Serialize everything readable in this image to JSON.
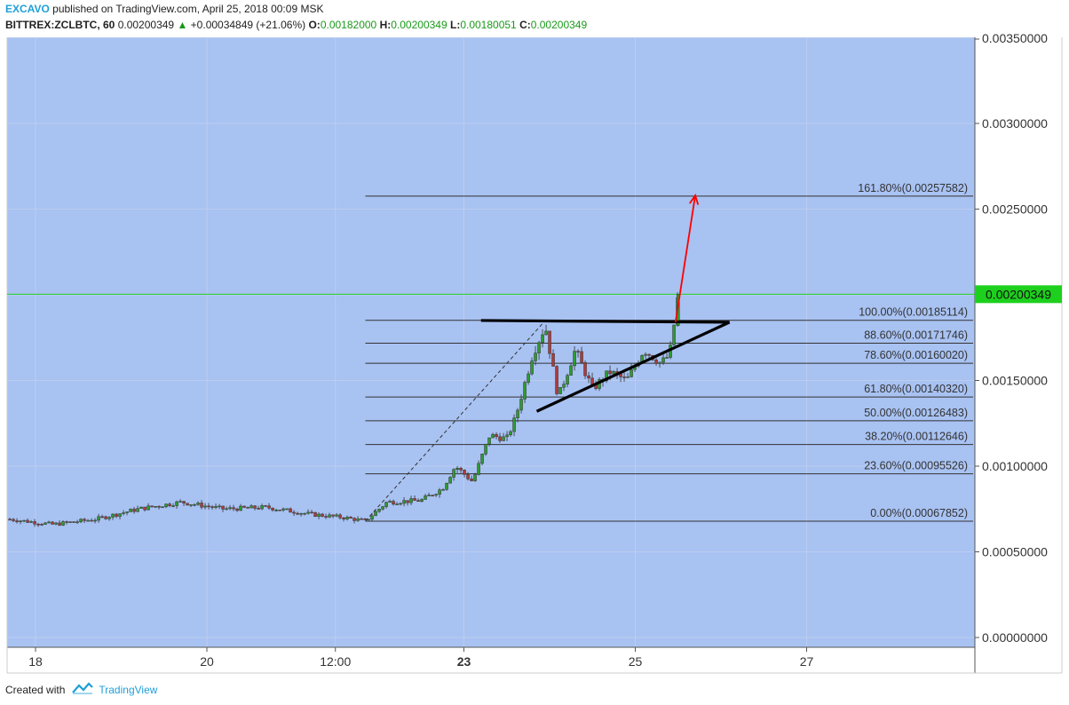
{
  "header": {
    "author": "EXCAVO",
    "published": "published on TradingView.com, April 25, 2018 00:09 MSK",
    "symbol": "BITTREX:ZCLBTC, 60",
    "last": "0.00200349",
    "change": "+0.00034849 (+21.06%)",
    "o_label": "O:",
    "o_value": "0.00182000",
    "h_label": "H:",
    "h_value": "0.00200349",
    "l_label": "L:",
    "l_value": "0.00180051",
    "c_label": "C:",
    "c_value": "0.00200349"
  },
  "footer": {
    "created_with": "Created with",
    "brand": "TradingView"
  },
  "colors": {
    "background": "#a8c2f2",
    "up": "#2e9b2e",
    "down": "#b03a3a",
    "fib_line": "#333333",
    "trendline": "#000000",
    "arrow": "#ff0000",
    "last_price_tag": "#1ed01e",
    "grid": "#bccdee"
  },
  "chart_data": {
    "type": "candlestick",
    "symbol": "BITTREX:ZCLBTC",
    "interval": "60",
    "y_axis": {
      "range": [
        0,
        0.0035
      ],
      "ticks": [
        "0.00000000",
        "0.00050000",
        "0.00100000",
        "0.00150000",
        "0.00200000",
        "0.00250000",
        "0.00300000",
        "0.00350000"
      ]
    },
    "x_axis": {
      "ticks": [
        {
          "label": "18",
          "day": 18.0,
          "bold": false
        },
        {
          "label": "20",
          "day": 20.0,
          "bold": false
        },
        {
          "label": "12:00",
          "day": 21.5,
          "bold": false
        },
        {
          "label": "23",
          "day": 23.0,
          "bold": true
        },
        {
          "label": "25",
          "day": 25.0,
          "bold": false
        },
        {
          "label": "27",
          "day": 27.0,
          "bold": false
        }
      ]
    },
    "last_price": "0.00200349",
    "price_path": [
      [
        17.7,
        0.00069
      ],
      [
        18.2,
        0.00066
      ],
      [
        18.7,
        0.00069
      ],
      [
        19.2,
        0.00075
      ],
      [
        19.7,
        0.00079
      ],
      [
        20.2,
        0.00075
      ],
      [
        20.7,
        0.00076
      ],
      [
        21.2,
        0.00072
      ],
      [
        21.6,
        0.0007
      ],
      [
        21.85,
        0.00068
      ],
      [
        22.1,
        0.00079
      ],
      [
        22.5,
        0.0008
      ],
      [
        22.75,
        0.00087
      ],
      [
        22.9,
        0.001
      ],
      [
        23.1,
        0.00091
      ],
      [
        23.3,
        0.00118
      ],
      [
        23.5,
        0.00116
      ],
      [
        23.6,
        0.00128
      ],
      [
        23.8,
        0.00165
      ],
      [
        23.95,
        0.00182
      ],
      [
        24.1,
        0.0014
      ],
      [
        24.3,
        0.00168
      ],
      [
        24.5,
        0.00145
      ],
      [
        24.7,
        0.00155
      ],
      [
        24.9,
        0.0015
      ],
      [
        25.1,
        0.00168
      ],
      [
        25.3,
        0.0016
      ],
      [
        25.4,
        0.00165
      ],
      [
        25.45,
        0.00182
      ],
      [
        25.5,
        0.002
      ]
    ],
    "fibonacci": [
      {
        "label": "0.00%(0.00067852)",
        "price": 0.00067852
      },
      {
        "label": "23.60%(0.00095526)",
        "price": 0.00095526
      },
      {
        "label": "38.20%(0.00112646)",
        "price": 0.00112646
      },
      {
        "label": "50.00%(0.00126483)",
        "price": 0.00126483
      },
      {
        "label": "61.80%(0.00140320)",
        "price": 0.0014032
      },
      {
        "label": "78.60%(0.00160020)",
        "price": 0.0016002
      },
      {
        "label": "88.60%(0.00171746)",
        "price": 0.00171746
      },
      {
        "label": "100.00%(0.00185114)",
        "price": 0.00185114
      },
      {
        "label": "161.80%(0.00257582)",
        "price": 0.00257582
      }
    ],
    "fib_x_range": [
      21.85,
      28.0
    ],
    "resistance_line": {
      "x": [
        23.2,
        26.1
      ],
      "y": [
        0.00185,
        0.00184
      ]
    },
    "support_line": {
      "x": [
        23.85,
        26.1
      ],
      "y": [
        0.00132,
        0.00184
      ]
    },
    "target_arrow": {
      "from": [
        25.47,
        0.00184
      ],
      "to": [
        25.7,
        0.00258
      ]
    },
    "dashed_guide": {
      "from": [
        21.85,
        0.00068
      ],
      "to": [
        23.95,
        0.00185
      ]
    }
  }
}
